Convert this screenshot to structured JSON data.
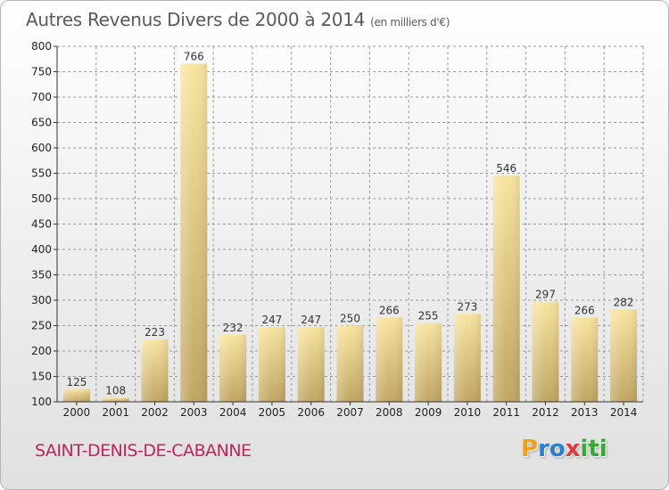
{
  "header": {
    "title": "Autres Revenus Divers de 2000 à 2014",
    "unit": "(en milliers d'€)"
  },
  "footer": {
    "city": "SAINT-DENIS-DE-CABANNE"
  },
  "logo": {
    "letters": [
      "P",
      "r",
      "o",
      "x",
      "i",
      "t",
      "i"
    ],
    "colors": [
      "#f0a020",
      "#2a7fd0",
      "#2a7fd0",
      "#e03a3a",
      "#3aa63a",
      "#3aa63a",
      "#3aa63a"
    ]
  },
  "chart_data": {
    "type": "bar",
    "title": "Autres Revenus Divers de 2000 à 2014",
    "subtitle": "(en milliers d'€)",
    "categories": [
      "2000",
      "2001",
      "2002",
      "2003",
      "2004",
      "2005",
      "2006",
      "2007",
      "2008",
      "2009",
      "2010",
      "2011",
      "2012",
      "2013",
      "2014"
    ],
    "values": [
      125,
      108,
      223,
      766,
      232,
      247,
      247,
      250,
      266,
      255,
      273,
      546,
      297,
      266,
      282
    ],
    "ylim": [
      100,
      800
    ],
    "yticks": [
      100,
      150,
      200,
      250,
      300,
      350,
      400,
      450,
      500,
      550,
      600,
      650,
      700,
      750,
      800
    ],
    "grid": true,
    "xlabel": "",
    "ylabel": "",
    "bar_colors": {
      "light": "#f8e4a0",
      "dark": "#c0a563"
    }
  }
}
